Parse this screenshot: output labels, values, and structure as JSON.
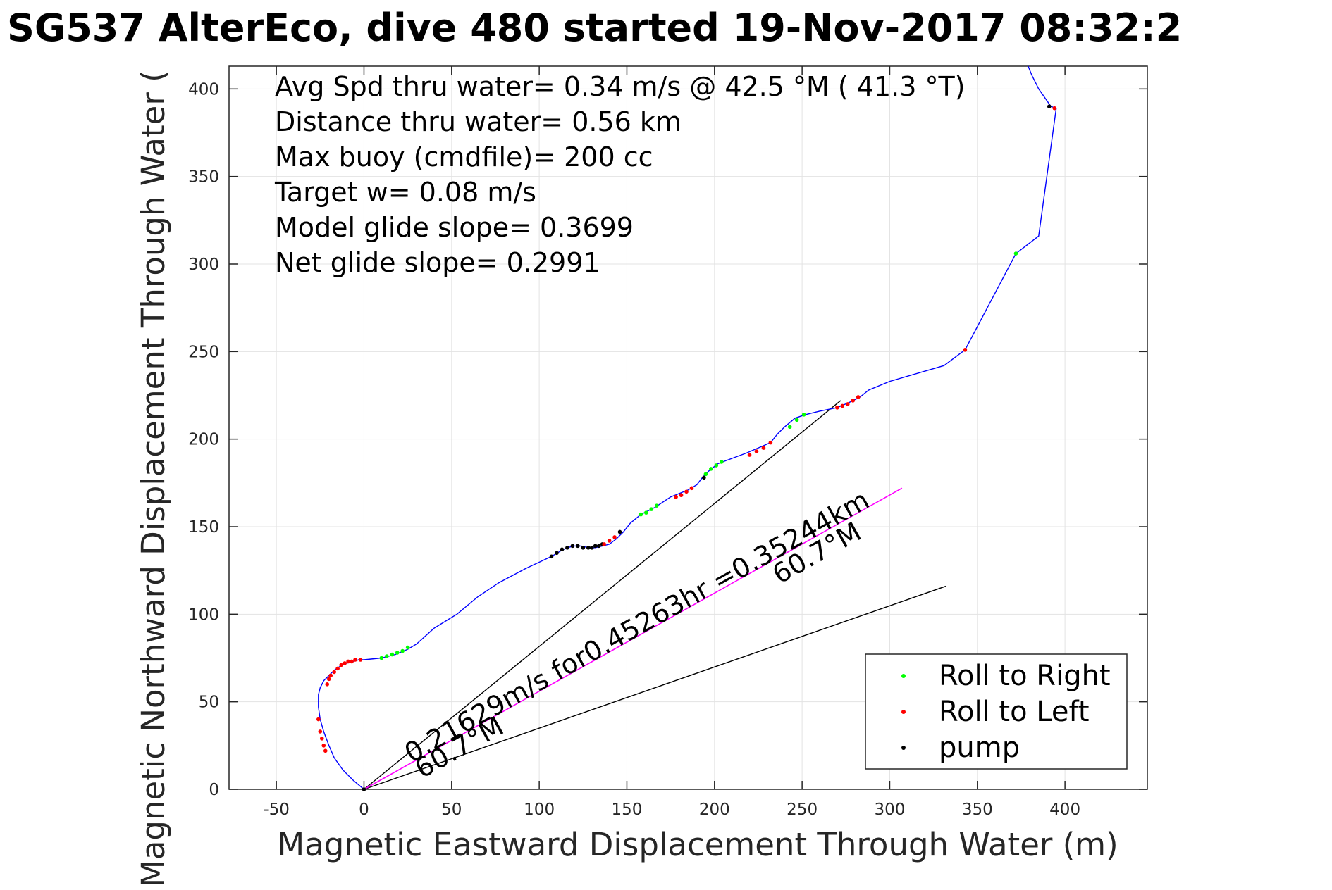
{
  "chart_data": {
    "type": "line",
    "title": "SG537 AlterEco, dive 480 started 19-Nov-2017 08:32:2",
    "xlabel": "Magnetic Eastward Displacement Through Water (m)",
    "ylabel": "Magnetic Northward Displacement Through Water (",
    "xlim": [
      -77,
      447
    ],
    "ylim": [
      0,
      413
    ],
    "grid": true,
    "legend_position": "bottom-right",
    "x_ticks": [
      "-50",
      "0",
      "50",
      "100",
      "150",
      "200",
      "250",
      "300",
      "350",
      "400"
    ],
    "y_ticks": [
      "0",
      "50",
      "100",
      "150",
      "200",
      "250",
      "300",
      "350",
      "400"
    ],
    "annotations": [
      "Avg Spd thru water=  0.34 m/s @  42.5 °M ( 41.3 °T)",
      "Distance thru water=  0.56 km",
      "Max buoy (cmdfile)= 200 cc",
      "Target w= 0.08 m/s",
      "Model glide slope= 0.3699",
      "Net glide slope= 0.2991"
    ],
    "current_label": "0.21629m/s for0.45263hr =0.35244km",
    "heading_label_1": "60.7°M",
    "heading_label_2": "60.7°M",
    "legend": [
      {
        "label": "Roll to Right",
        "color": "#00ff00"
      },
      {
        "label": "Roll to Left",
        "color": "#ff0000"
      },
      {
        "label": "pump",
        "color": "#000000"
      }
    ],
    "track_color": "#0000ff",
    "current_color": "#ff00ff",
    "track": {
      "x": [
        0,
        -6,
        -12,
        -17,
        -20,
        -23,
        -25,
        -26,
        -26,
        -25,
        -23,
        -20,
        -17,
        -14,
        -10,
        -6,
        -3,
        0,
        10,
        18,
        25,
        30,
        40,
        53,
        65,
        77,
        92,
        107,
        112,
        116,
        120,
        124,
        128,
        132,
        136,
        140,
        144,
        148,
        152,
        158,
        166,
        175,
        185,
        190,
        193,
        197,
        202,
        210,
        218,
        225,
        232,
        236,
        240,
        246,
        252,
        260,
        270,
        277,
        283,
        288,
        300,
        331,
        343,
        372,
        385,
        395,
        392,
        385,
        381,
        379
      ],
      "y": [
        0,
        5,
        11,
        18,
        25,
        33,
        40,
        47,
        54,
        58,
        62,
        65,
        68,
        70,
        72,
        73,
        74,
        74,
        75,
        77,
        80,
        83,
        92,
        100,
        110,
        118,
        126,
        133,
        136,
        138,
        139,
        139,
        138,
        138,
        139,
        140,
        143,
        147,
        152,
        157,
        161,
        167,
        171,
        174,
        178,
        182,
        186,
        189,
        192,
        195,
        198,
        203,
        207,
        212,
        214,
        216,
        218,
        221,
        224,
        228,
        233,
        242,
        251,
        306,
        316,
        389,
        390,
        400,
        408,
        413
      ]
    },
    "roll_right_points": {
      "x": [
        10,
        13,
        16,
        19,
        22,
        25,
        158,
        161,
        164,
        167,
        195,
        198,
        201,
        204,
        243,
        247,
        251,
        372
      ],
      "y": [
        75,
        76,
        77,
        78,
        79,
        81,
        157,
        158,
        160,
        162,
        180,
        183,
        185,
        187,
        207,
        211,
        214,
        306
      ]
    },
    "roll_left_points": {
      "x": [
        -26,
        -25,
        -24,
        -23,
        -22,
        -21,
        -20,
        -19,
        -17,
        -15,
        -13,
        -11,
        -9,
        -7,
        -5,
        -2,
        137,
        140,
        143,
        178,
        181,
        184,
        187,
        220,
        224,
        228,
        232,
        270,
        273,
        276,
        279,
        282,
        343,
        394
      ],
      "y": [
        40,
        33,
        29,
        25,
        22,
        60,
        63,
        65,
        67,
        69,
        71,
        72,
        73,
        73,
        74,
        74,
        140,
        142,
        144,
        167,
        168,
        170,
        172,
        191,
        193,
        195,
        198,
        218,
        219,
        220,
        222,
        224,
        251,
        389
      ]
    },
    "pump_points": {
      "x": [
        0,
        107,
        110,
        113,
        116,
        119,
        122,
        125,
        128,
        130,
        132,
        134,
        136,
        146,
        194,
        391
      ],
      "y": [
        0,
        133,
        135,
        137,
        138,
        139,
        139,
        138,
        138,
        138,
        139,
        139,
        140,
        147,
        178,
        390
      ]
    },
    "heading_lines": [
      {
        "x": [
          0,
          272
        ],
        "y": [
          0,
          222
        ]
      },
      {
        "x": [
          0,
          332
        ],
        "y": [
          0,
          116
        ]
      }
    ],
    "current_vector": {
      "x": [
        0,
        307
      ],
      "y": [
        0,
        172
      ]
    }
  }
}
